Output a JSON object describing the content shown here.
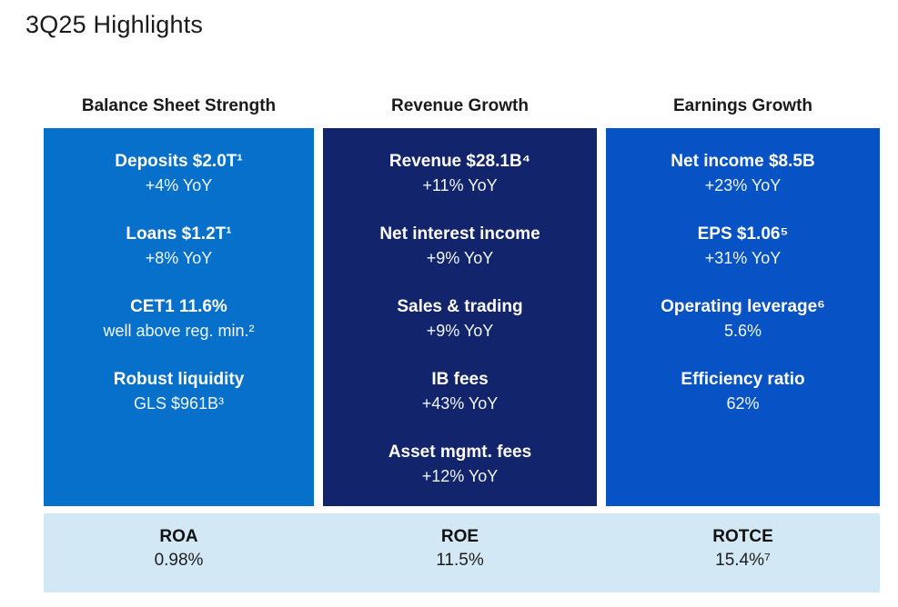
{
  "page": {
    "title": "3Q25 Highlights"
  },
  "colors": {
    "column1_bg": "#0770ca",
    "column2_bg": "#12246b",
    "column3_bg": "#0752c4",
    "footer_bg": "#d2e9f5",
    "header_text": "#1a1a1a",
    "column_text": "#ffffff"
  },
  "columns": [
    {
      "header": "Balance Sheet Strength",
      "bg": "#0770ca",
      "items": [
        {
          "label": "Deposits $2.0T¹",
          "sub": "+4% YoY"
        },
        {
          "label": "Loans $1.2T¹",
          "sub": "+8% YoY"
        },
        {
          "label": "CET1 11.6%",
          "sub": "well above reg. min.²"
        },
        {
          "label": "Robust liquidity",
          "sub": "GLS $961B³"
        }
      ]
    },
    {
      "header": "Revenue Growth",
      "bg": "#12246b",
      "items": [
        {
          "label": "Revenue $28.1B⁴",
          "sub": "+11% YoY"
        },
        {
          "label": "Net interest income",
          "sub": "+9% YoY"
        },
        {
          "label": "Sales & trading",
          "sub": "+9% YoY"
        },
        {
          "label": "IB fees",
          "sub": "+43% YoY"
        },
        {
          "label": "Asset mgmt. fees",
          "sub": "+12% YoY"
        }
      ]
    },
    {
      "header": "Earnings Growth",
      "bg": "#0752c4",
      "items": [
        {
          "label": "Net income $8.5B",
          "sub": "+23% YoY"
        },
        {
          "label": "EPS $1.06⁵",
          "sub": "+31% YoY"
        },
        {
          "label": "Operating leverage⁶",
          "sub": "5.6%"
        },
        {
          "label": "Efficiency ratio",
          "sub": "62%"
        }
      ]
    }
  ],
  "footer": {
    "bg": "#d2e9f5",
    "metrics": [
      {
        "label": "ROA",
        "value": "0.98%"
      },
      {
        "label": "ROE",
        "value": "11.5%"
      },
      {
        "label": "ROTCE",
        "value": "15.4%⁷"
      }
    ]
  }
}
